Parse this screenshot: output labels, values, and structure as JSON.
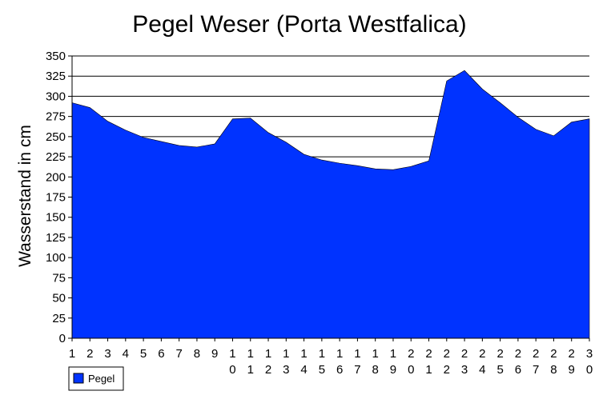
{
  "chart_data": {
    "type": "area",
    "title": "Pegel Weser (Porta Westfalica)",
    "xlabel": "",
    "ylabel": "Wasserstand in cm",
    "x": [
      1,
      2,
      3,
      4,
      5,
      6,
      7,
      8,
      9,
      10,
      11,
      12,
      13,
      14,
      15,
      16,
      17,
      18,
      19,
      20,
      21,
      22,
      23,
      24,
      25,
      26,
      27,
      28,
      29,
      30
    ],
    "x_tick_labels": [
      [
        "1"
      ],
      [
        "2"
      ],
      [
        "3"
      ],
      [
        "4"
      ],
      [
        "5"
      ],
      [
        "6"
      ],
      [
        "7"
      ],
      [
        "8"
      ],
      [
        "9"
      ],
      [
        "1",
        "0"
      ],
      [
        "1",
        "1"
      ],
      [
        "1",
        "2"
      ],
      [
        "1",
        "3"
      ],
      [
        "1",
        "4"
      ],
      [
        "1",
        "5"
      ],
      [
        "1",
        "6"
      ],
      [
        "1",
        "7"
      ],
      [
        "1",
        "8"
      ],
      [
        "1",
        "9"
      ],
      [
        "2",
        "0"
      ],
      [
        "2",
        "1"
      ],
      [
        "2",
        "2"
      ],
      [
        "2",
        "3"
      ],
      [
        "2",
        "4"
      ],
      [
        "2",
        "5"
      ],
      [
        "2",
        "6"
      ],
      [
        "2",
        "7"
      ],
      [
        "2",
        "8"
      ],
      [
        "2",
        "9"
      ],
      [
        "3",
        "0"
      ]
    ],
    "series": [
      {
        "name": "Pegel",
        "color": "#0033ff",
        "values": [
          292,
          286,
          269,
          258,
          249,
          244,
          239,
          237,
          241,
          272,
          273,
          255,
          243,
          228,
          221,
          217,
          214,
          210,
          209,
          213,
          220,
          319,
          332,
          309,
          292,
          274,
          259,
          251,
          268,
          272
        ]
      }
    ],
    "ylim": [
      0,
      350
    ],
    "yticks": [
      0,
      25,
      50,
      75,
      100,
      125,
      150,
      175,
      200,
      225,
      250,
      275,
      300,
      325,
      350
    ],
    "grid": true,
    "legend": "bottom-left"
  }
}
